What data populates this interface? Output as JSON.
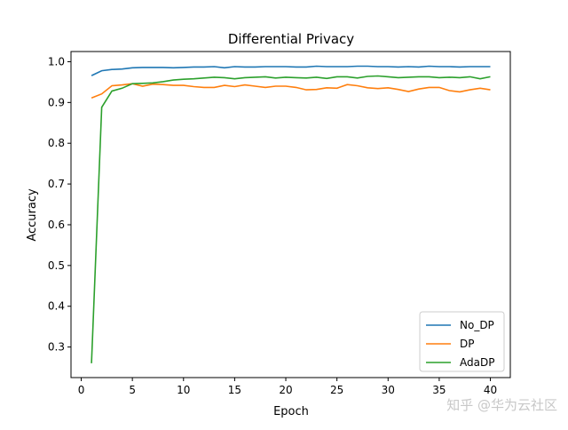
{
  "watermark": "知乎 @华为云社区",
  "chart_data": {
    "type": "line",
    "title": "Differential Privacy",
    "xlabel": "Epoch",
    "ylabel": "Accuracy",
    "xlim": [
      -1,
      41.95
    ],
    "ylim": [
      0.225,
      1.025
    ],
    "xticks": [
      0,
      5,
      10,
      15,
      20,
      25,
      30,
      35,
      40
    ],
    "yticks": [
      0.3,
      0.4,
      0.5,
      0.6,
      0.7,
      0.8,
      0.9,
      1.0
    ],
    "ytick_labels": [
      "0.3",
      "0.4",
      "0.5",
      "0.6",
      "0.7",
      "0.8",
      "0.9",
      "1.0"
    ],
    "grid": false,
    "legend_position": "lower-right",
    "x": [
      1,
      2,
      3,
      4,
      5,
      6,
      7,
      8,
      9,
      10,
      11,
      12,
      13,
      14,
      15,
      16,
      17,
      18,
      19,
      20,
      21,
      22,
      23,
      24,
      25,
      26,
      27,
      28,
      29,
      30,
      31,
      32,
      33,
      34,
      35,
      36,
      37,
      38,
      39,
      40
    ],
    "series": [
      {
        "name": "No_DP",
        "color": "#1f77b4",
        "values": [
          0.966,
          0.978,
          0.981,
          0.982,
          0.985,
          0.986,
          0.986,
          0.986,
          0.985,
          0.986,
          0.987,
          0.987,
          0.988,
          0.985,
          0.988,
          0.987,
          0.987,
          0.988,
          0.988,
          0.988,
          0.987,
          0.987,
          0.989,
          0.988,
          0.988,
          0.988,
          0.989,
          0.989,
          0.988,
          0.988,
          0.987,
          0.988,
          0.987,
          0.989,
          0.988,
          0.988,
          0.987,
          0.988,
          0.988,
          0.988
        ]
      },
      {
        "name": "DP",
        "color": "#ff7f0e",
        "values": [
          0.911,
          0.921,
          0.941,
          0.943,
          0.946,
          0.94,
          0.945,
          0.944,
          0.942,
          0.942,
          0.939,
          0.937,
          0.937,
          0.942,
          0.939,
          0.943,
          0.94,
          0.937,
          0.94,
          0.94,
          0.937,
          0.931,
          0.932,
          0.936,
          0.935,
          0.944,
          0.941,
          0.936,
          0.934,
          0.936,
          0.932,
          0.927,
          0.933,
          0.937,
          0.937,
          0.929,
          0.926,
          0.931,
          0.935,
          0.931
        ]
      },
      {
        "name": "AdaDP",
        "color": "#2ca02c",
        "values": [
          0.26,
          0.888,
          0.928,
          0.935,
          0.946,
          0.947,
          0.948,
          0.951,
          0.955,
          0.957,
          0.958,
          0.96,
          0.962,
          0.961,
          0.958,
          0.961,
          0.962,
          0.963,
          0.96,
          0.962,
          0.961,
          0.96,
          0.962,
          0.959,
          0.963,
          0.963,
          0.96,
          0.964,
          0.965,
          0.963,
          0.961,
          0.962,
          0.963,
          0.963,
          0.961,
          0.962,
          0.961,
          0.963,
          0.958,
          0.963
        ]
      }
    ]
  }
}
